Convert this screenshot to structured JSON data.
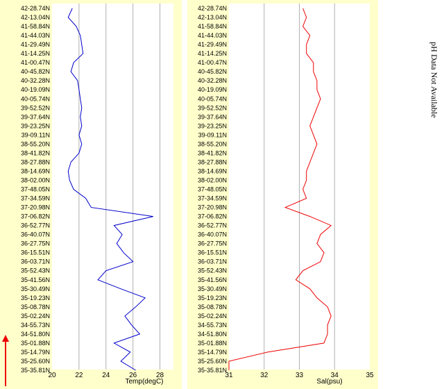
{
  "chart_data": [
    {
      "type": "line",
      "xlabel": "Temp(degC)",
      "ylabel": "",
      "xlim": [
        20,
        29
      ],
      "xticks": [
        20,
        22,
        24,
        26,
        28
      ],
      "grid": true,
      "orientation": "vertical-profile",
      "color": "#0000cc",
      "y_labels": [
        "42-28.74N",
        "42-13.04N",
        "41-58.84N",
        "41-44.03N",
        "41-29.49N",
        "41-14.25N",
        "41-00.47N",
        "40-45.82N",
        "40-32.28N",
        "40-19.09N",
        "40-05.74N",
        "39-52.52N",
        "39-37.64N",
        "39-23.25N",
        "39-09.11N",
        "38-55.20N",
        "38-41.82N",
        "38-27.88N",
        "38-14.69N",
        "38-02.00N",
        "37-48.05N",
        "37-34.59N",
        "37-20.98N",
        "37-06.82N",
        "36-52.77N",
        "36-40.07N",
        "36-27.75N",
        "36-15.51N",
        "36-03.71N",
        "35-52.43N",
        "35-41.56N",
        "35-30.49N",
        "35-19.23N",
        "35-08.78N",
        "35-02.24N",
        "34-55.73N",
        "34-51.80N",
        "35-01.88N",
        "35-14.79N",
        "35-25.60N",
        "35-35.81N"
      ],
      "x": [
        21.5,
        21.2,
        21.8,
        22.1,
        22.2,
        22.3,
        21.6,
        21.4,
        21.9,
        22.0,
        22.1,
        22.2,
        22.1,
        22.2,
        22.0,
        22.2,
        22.0,
        21.4,
        21.2,
        21.3,
        21.6,
        22.5,
        22.9,
        27.5,
        24.6,
        25.2,
        24.8,
        25.3,
        26.0,
        24.0,
        23.4,
        25.1,
        26.9,
        26.2,
        25.4,
        25.9,
        26.5,
        24.6,
        25.8,
        25.1,
        26.2
      ]
    },
    {
      "type": "line",
      "xlabel": "Sal(psu)",
      "ylabel": "",
      "xlim": [
        31,
        35
      ],
      "xticks": [
        31,
        32,
        33,
        34,
        35
      ],
      "grid": true,
      "orientation": "vertical-profile",
      "color": "#ee0000",
      "y_labels": [
        "42-28.74N",
        "42-13.04N",
        "41-58.84N",
        "41-44.03N",
        "41-29.49N",
        "41-14.25N",
        "41-00.47N",
        "40-45.82N",
        "40-32.28N",
        "40-19.09N",
        "40-05.74N",
        "39-52.52N",
        "39-37.64N",
        "39-23.25N",
        "39-09.11N",
        "38-55.20N",
        "38-41.82N",
        "38-27.88N",
        "38-14.69N",
        "38-02.00N",
        "37-48.05N",
        "37-34.59N",
        "37-20.98N",
        "37-06.82N",
        "36-52.77N",
        "36-40.07N",
        "36-27.75N",
        "36-15.51N",
        "36-03.71N",
        "35-52.43N",
        "35-41.56N",
        "35-30.49N",
        "35-19.23N",
        "35-08.78N",
        "35-02.24N",
        "34-55.73N",
        "34-51.80N",
        "35-01.88N",
        "35-14.79N",
        "35-25.60N",
        "35-35.81N"
      ],
      "x": [
        33.1,
        33.2,
        33.1,
        33.3,
        33.2,
        33.2,
        33.4,
        33.4,
        33.5,
        33.5,
        33.6,
        33.5,
        33.4,
        33.3,
        33.4,
        33.5,
        33.4,
        33.3,
        33.2,
        33.2,
        33.1,
        33.2,
        32.6,
        33.3,
        33.9,
        33.6,
        33.5,
        33.7,
        33.6,
        33.1,
        32.9,
        33.3,
        33.5,
        33.8,
        33.9,
        33.8,
        33.8,
        33.7,
        32.1,
        31.0,
        31.0
      ]
    }
  ],
  "side_note": "pH Data Not Available",
  "colors": {
    "panel_bg": "#ffffcc",
    "plot_bg": "#ffffff",
    "grid": "#b0b0b0",
    "arrow": "#ee0000"
  }
}
